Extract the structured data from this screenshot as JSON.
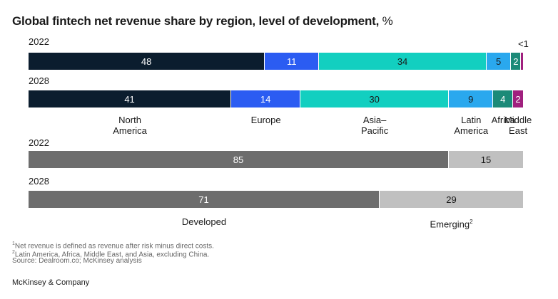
{
  "title": "Global fintech net revenue share by region, level of development,",
  "title_unit": "%",
  "small_annotation": "<1",
  "chart_data": [
    {
      "type": "bar",
      "stacked": true,
      "orientation": "horizontal",
      "title": "Global fintech net revenue share by region",
      "categories": [
        "2022",
        "2028"
      ],
      "series": [
        {
          "name": "North America",
          "label_lines": [
            "North",
            "America"
          ],
          "color": "#0b1d2e",
          "text_color": "#ffffff",
          "values": [
            48,
            41
          ]
        },
        {
          "name": "Europe",
          "label_lines": [
            "Europe"
          ],
          "color": "#2b5cf2",
          "text_color": "#ffffff",
          "values": [
            11,
            14
          ]
        },
        {
          "name": "Asia–Pacific",
          "label_lines": [
            "Asia–",
            "Pacific"
          ],
          "color": "#12cfc0",
          "text_color": "#1a1a1a",
          "values": [
            34,
            30
          ]
        },
        {
          "name": "Latin America",
          "label_lines": [
            "Latin",
            "America"
          ],
          "color": "#2aa8ee",
          "text_color": "#1a1a1a",
          "values": [
            5,
            9
          ]
        },
        {
          "name": "Africa",
          "label_lines": [
            "Africa"
          ],
          "color": "#1b8a78",
          "text_color": "#ffffff",
          "values": [
            2,
            4
          ]
        },
        {
          "name": "Middle East",
          "label_lines": [
            "Middle",
            "East"
          ],
          "color": "#a0207e",
          "text_color": "#ffffff",
          "values": [
            0.4,
            2
          ]
        }
      ],
      "value_labels": [
        [
          "48",
          "11",
          "34",
          "5",
          "2",
          ""
        ],
        [
          "41",
          "14",
          "30",
          "9",
          "4",
          "2"
        ]
      ]
    },
    {
      "type": "bar",
      "stacked": true,
      "orientation": "horizontal",
      "title": "Global fintech net revenue share by level of development",
      "categories": [
        "2022",
        "2028"
      ],
      "series": [
        {
          "name": "Developed",
          "label_lines": [
            "Developed"
          ],
          "sup": "",
          "color": "#6d6d6d",
          "text_color": "#ffffff",
          "values": [
            85,
            71
          ]
        },
        {
          "name": "Emerging",
          "label_lines": [
            "Emerging"
          ],
          "sup": "2",
          "color": "#c0c0c0",
          "text_color": "#1a1a1a",
          "values": [
            15,
            29
          ]
        }
      ],
      "value_labels": [
        [
          "85",
          "15"
        ],
        [
          "71",
          "29"
        ]
      ]
    }
  ],
  "footnotes": [
    {
      "sup": "1",
      "text": "Net revenue is defined as revenue after risk minus direct costs."
    },
    {
      "sup": "2",
      "text": "Latin America, Africa, Middle East, and Asia, excluding China."
    },
    {
      "sup": "",
      "text": "Source: Dealroom.co; McKinsey analysis"
    }
  ],
  "brand": "McKinsey & Company"
}
